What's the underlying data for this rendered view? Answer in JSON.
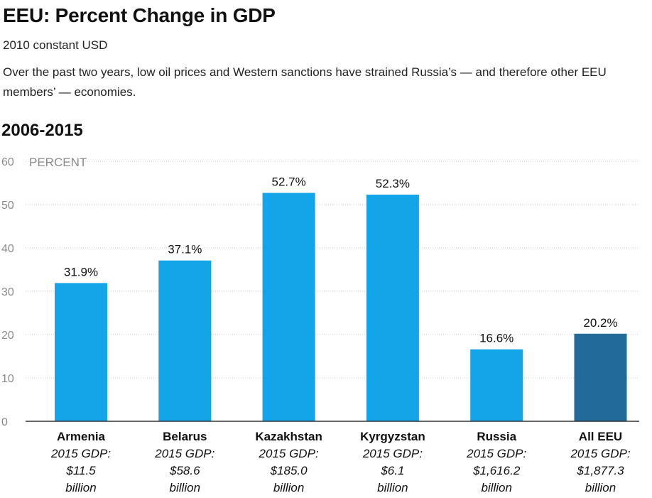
{
  "header": {
    "title": "EEU: Percent Change in GDP",
    "subtitle": "2010 constant USD",
    "description": "Over the past two years, low oil prices and Western sanctions have strained Russia’s — and therefore other EEU members’ — economies.",
    "period": "2006-2015"
  },
  "colors": {
    "bar": "#14a5e8",
    "highlight": "#216a9a",
    "grid": "#c8c8c8",
    "axis": "#333333"
  },
  "chart_data": {
    "type": "bar",
    "ylabel": "PERCENT",
    "ylim": [
      0,
      60
    ],
    "yticks": [
      0,
      10,
      20,
      30,
      40,
      50,
      60
    ],
    "grid": true,
    "categories": [
      "Armenia",
      "Belarus",
      "Kazakhstan",
      "Kyrgyzstan",
      "Russia",
      "All EEU"
    ],
    "values": [
      31.9,
      37.1,
      52.7,
      52.3,
      16.6,
      20.2
    ],
    "value_labels": [
      "31.9%",
      "37.1%",
      "52.7%",
      "52.3%",
      "16.6%",
      "20.2%"
    ],
    "annotations": [
      [
        "2015 GDP:",
        "$11.5",
        "billion"
      ],
      [
        "2015 GDP:",
        "$58.6",
        "billion"
      ],
      [
        "2015 GDP:",
        "$185.0",
        "billion"
      ],
      [
        "2015 GDP:",
        "$6.1",
        "billion"
      ],
      [
        "2015 GDP:",
        "$1,616.2",
        "billion"
      ],
      [
        "2015 GDP:",
        "$1,877.3",
        "billion"
      ]
    ],
    "highlight_category": "All EEU"
  }
}
